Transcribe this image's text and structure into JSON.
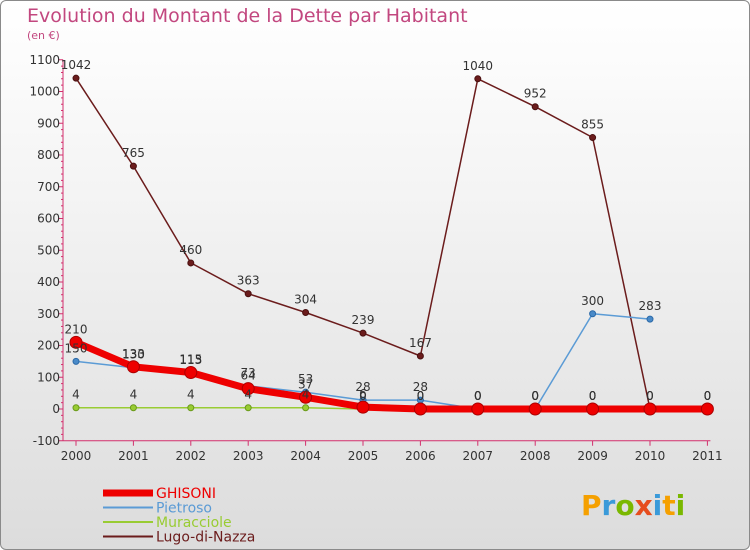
{
  "title": "Evolution du Montant de la Dette par Habitant",
  "subtitle": "(en €)",
  "brand": "Proxiti",
  "chart_data": {
    "type": "line",
    "title": "Evolution du Montant de la Dette par Habitant",
    "subtitle": "(en €)",
    "x": [
      "2000",
      "2001",
      "2002",
      "2003",
      "2004",
      "2005",
      "2006",
      "2007",
      "2008",
      "2009",
      "2010",
      "2011"
    ],
    "y_ticks": [
      -100,
      0,
      100,
      200,
      300,
      400,
      500,
      600,
      700,
      800,
      900,
      1000,
      1100
    ],
    "ylim": [
      -100,
      1100
    ],
    "grid": false,
    "legend_position": "bottom-left",
    "series": [
      {
        "name": "GHISONI",
        "color": "#ee0000",
        "values": [
          210,
          133,
          115,
          64,
          37,
          6,
          0,
          0,
          0,
          0,
          0,
          0
        ],
        "labels": [
          "210",
          "133",
          "115",
          "64",
          "37",
          "6",
          "0",
          "0",
          "0",
          "0",
          "0",
          "0"
        ]
      },
      {
        "name": "Pietroso",
        "color": "#5b9bd5",
        "values": [
          150,
          130,
          113,
          73,
          53,
          28,
          28,
          0,
          0,
          300,
          283,
          null
        ],
        "labels": [
          "150",
          "130",
          "113",
          "73",
          "53",
          "28",
          "28",
          "0",
          "0",
          "300",
          "283",
          ""
        ]
      },
      {
        "name": "Muracciole",
        "color": "#99cc33",
        "values": [
          4,
          4,
          4,
          4,
          4,
          0,
          0,
          0,
          0,
          0,
          null,
          null
        ],
        "labels": [
          "4",
          "4",
          "4",
          "4",
          "4",
          "0",
          "0",
          "0",
          "0",
          "0",
          "",
          ""
        ]
      },
      {
        "name": "Lugo-di-Nazza",
        "color": "#6b1c1c",
        "values": [
          1042,
          765,
          460,
          363,
          304,
          239,
          167,
          1040,
          952,
          855,
          0,
          0
        ],
        "labels": [
          "1042",
          "765",
          "460",
          "363",
          "304",
          "239",
          "167",
          "1040",
          "952",
          "855",
          "0",
          "0"
        ]
      }
    ]
  }
}
